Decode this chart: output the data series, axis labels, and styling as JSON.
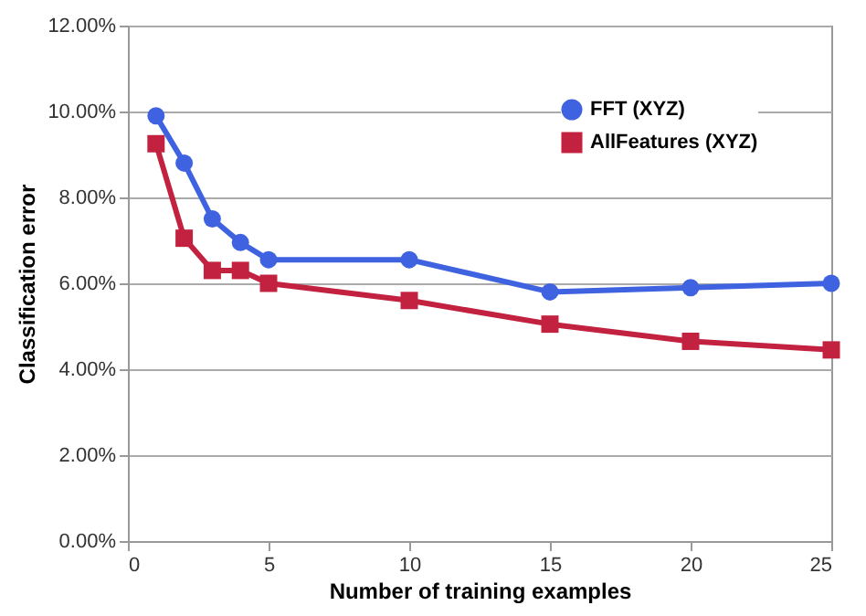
{
  "chart_data": {
    "type": "line",
    "xlabel": "Number of training examples",
    "ylabel": "Classification error",
    "x": [
      1,
      2,
      3,
      4,
      5,
      10,
      15,
      20,
      25
    ],
    "series": [
      {
        "name": "FFT (XYZ)",
        "color": "#3f63e0",
        "marker": "circle",
        "values": [
          9.9,
          8.8,
          7.5,
          6.95,
          6.55,
          6.55,
          5.8,
          5.9,
          6.0
        ]
      },
      {
        "name": "AllFeatures (XYZ)",
        "color": "#c2213f",
        "marker": "square",
        "values": [
          9.25,
          7.05,
          6.3,
          6.3,
          6.0,
          5.6,
          5.05,
          4.65,
          4.45
        ]
      }
    ],
    "xlim": [
      0,
      25
    ],
    "xticks": [
      0,
      5,
      10,
      15,
      20,
      25
    ],
    "ylim": [
      0,
      12
    ],
    "yticks": [
      {
        "value": 0,
        "label": "0.00%"
      },
      {
        "value": 2,
        "label": "2.00%"
      },
      {
        "value": 4,
        "label": "4.00%"
      },
      {
        "value": 6,
        "label": "6.00%"
      },
      {
        "value": 8,
        "label": "8.00%"
      },
      {
        "value": 10,
        "label": "10.00%"
      },
      {
        "value": 12,
        "label": "12.00%"
      }
    ],
    "grid": "y",
    "legend": "top right",
    "line_style": "solid"
  }
}
